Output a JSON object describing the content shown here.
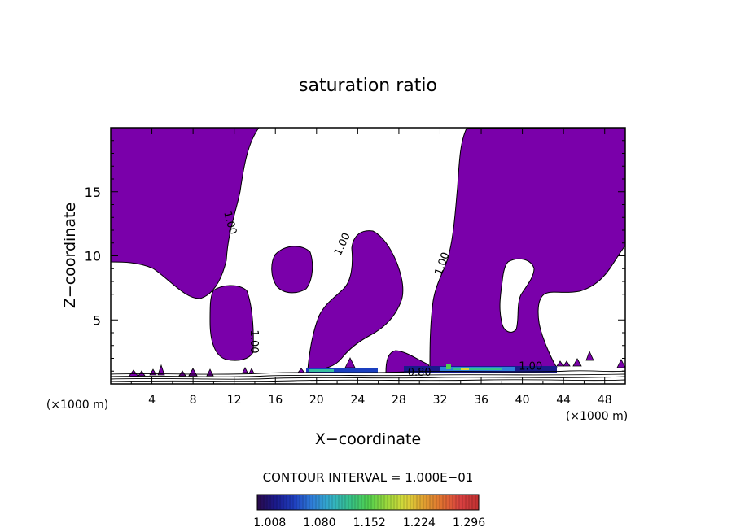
{
  "chart_data": {
    "type": "heatmap",
    "title": "saturation ratio",
    "xlabel": "X−coordinate",
    "ylabel": "Z−coordinate",
    "x_unit_left": "(×1000 m)",
    "x_unit_right": "(×1000 m)",
    "xlim": [
      0,
      50
    ],
    "ylim": [
      0,
      20
    ],
    "x_ticks": [
      4,
      8,
      12,
      16,
      20,
      24,
      28,
      32,
      36,
      40,
      44,
      48
    ],
    "x_tick_labels": [
      "4",
      "8",
      "12",
      "16",
      "20",
      "24",
      "28",
      "32",
      "36",
      "40",
      "44",
      "48"
    ],
    "y_ticks": [
      5,
      10,
      15
    ],
    "y_tick_labels": [
      "5",
      "10",
      "15"
    ],
    "contour_interval_label": "CONTOUR INTERVAL = 1.000E−01",
    "contour_labels": [
      {
        "text": "1.00",
        "x": 11.3,
        "z": 12.5,
        "angle": 75
      },
      {
        "text": "1.00",
        "x": 13.6,
        "z": 3.3,
        "angle": 90
      },
      {
        "text": "1.00",
        "x": 22.8,
        "z": 10.8,
        "angle": -65
      },
      {
        "text": "1.00",
        "x": 32.5,
        "z": 9.3,
        "angle": -70
      },
      {
        "text": "1.00",
        "x": 40.8,
        "z": 1.1,
        "angle": 0
      },
      {
        "text": "0.80",
        "x": 30.0,
        "z": 0.65,
        "angle": 0
      }
    ],
    "colorbar": {
      "tick_labels": [
        "1.008",
        "1.080",
        "1.152",
        "1.224",
        "1.296"
      ],
      "tick_values": [
        1.008,
        1.08,
        1.152,
        1.224,
        1.296
      ],
      "range": [
        0.99,
        1.31
      ],
      "colors": [
        "#2a0a4a",
        "#1a1a8c",
        "#1f3fbf",
        "#2f7fd8",
        "#33b0c8",
        "#35c08a",
        "#4fcf4f",
        "#9ad83c",
        "#d8d83a",
        "#e0a030",
        "#e07030",
        "#d84040",
        "#c03030"
      ]
    },
    "colors": {
      "saturated_region": "#7a00aa",
      "frame": "#000000",
      "background": "#ffffff"
    }
  }
}
